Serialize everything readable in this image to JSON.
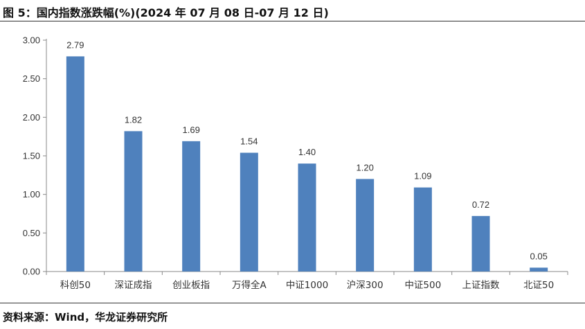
{
  "header": {
    "title": "图 5：国内指数涨跌幅(%)(2024 年 07 月 08 日-07 月 12 日)"
  },
  "footer": {
    "source": "资料来源：Wind，华龙证券研究所"
  },
  "colors": {
    "bar": "#4f81bd",
    "axis": "#888888",
    "text": "#333333"
  },
  "chart_data": {
    "type": "bar",
    "title": "图 5：国内指数涨跌幅(%)(2024 年 07 月 08 日-07 月 12 日)",
    "categories": [
      "科创50",
      "深证成指",
      "创业板指",
      "万得全A",
      "中证1000",
      "沪深300",
      "中证500",
      "上证指数",
      "北证50"
    ],
    "values": [
      2.79,
      1.82,
      1.69,
      1.54,
      1.4,
      1.2,
      1.09,
      0.72,
      0.05
    ],
    "data_labels": [
      "2.79",
      "1.82",
      "1.69",
      "1.54",
      "1.40",
      "1.20",
      "1.09",
      "0.72",
      "0.05"
    ],
    "yticks": [
      "0.00",
      "0.50",
      "1.00",
      "1.50",
      "2.00",
      "2.50",
      "3.00"
    ],
    "ylim": [
      0,
      3
    ],
    "xlabel": "",
    "ylabel": "",
    "grid": false,
    "legend": "none"
  }
}
